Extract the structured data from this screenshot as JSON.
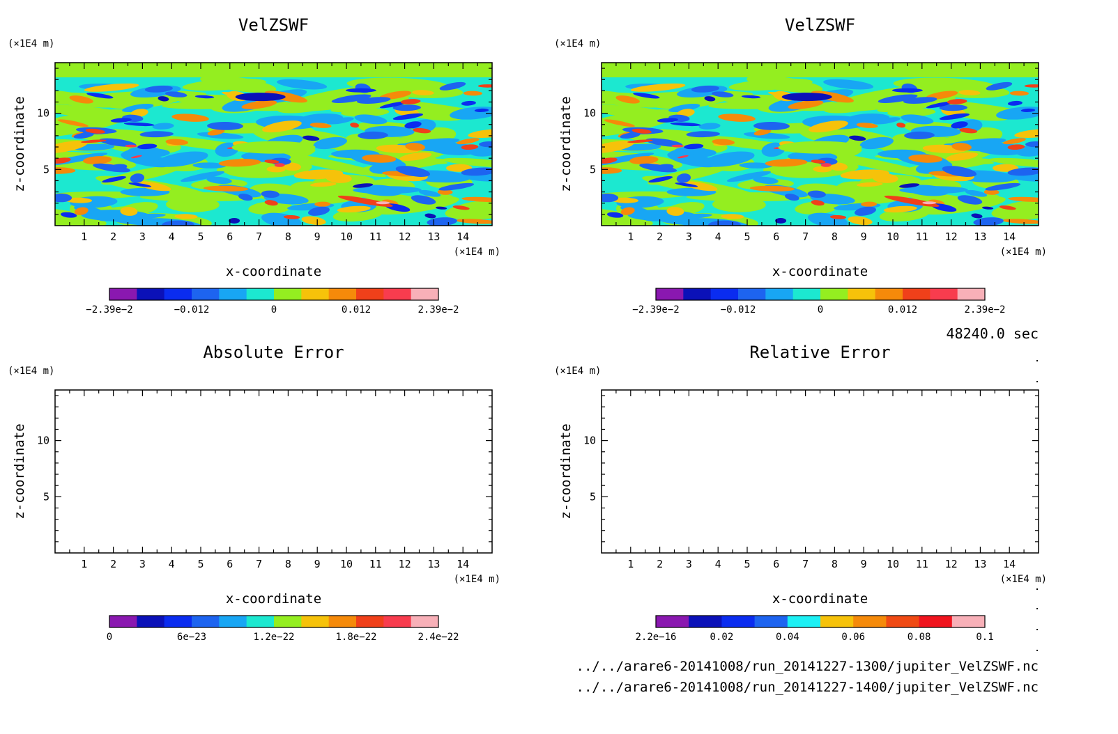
{
  "chart_data": [
    {
      "type": "heatmap",
      "title": "VelZSWF",
      "xlabel": "x-coordinate",
      "ylabel": "z-coordinate",
      "x_unit": "(×1E4 m)",
      "y_unit": "(×1E4 m)",
      "xlim": [
        0,
        15
      ],
      "ylim": [
        0,
        14.5
      ],
      "x_ticks": [
        "1",
        "2",
        "3",
        "4",
        "5",
        "6",
        "7",
        "8",
        "9",
        "10",
        "11",
        "12",
        "13",
        "14"
      ],
      "y_ticks": [
        "5",
        "10"
      ],
      "colorbar": {
        "range": [
          -0.0239,
          0.0239
        ],
        "labels": [
          "−2.39e−2",
          "−0.012",
          "0",
          "0.012",
          "2.39e−2"
        ],
        "colors": [
          "#8a18b0",
          "#0b11b8",
          "#0a2cf0",
          "#1d64f0",
          "#18a6f4",
          "#1ce8d0",
          "#94ee20",
          "#f6c20a",
          "#f58a0a",
          "#f0401a",
          "#f83c4e",
          "#f8b0b8"
        ]
      },
      "filled": true
    },
    {
      "type": "heatmap",
      "title": "VelZSWF",
      "xlabel": "x-coordinate",
      "ylabel": "z-coordinate",
      "x_unit": "(×1E4 m)",
      "y_unit": "(×1E4 m)",
      "xlim": [
        0,
        15
      ],
      "ylim": [
        0,
        14.5
      ],
      "x_ticks": [
        "1",
        "2",
        "3",
        "4",
        "5",
        "6",
        "7",
        "8",
        "9",
        "10",
        "11",
        "12",
        "13",
        "14"
      ],
      "y_ticks": [
        "5",
        "10"
      ],
      "colorbar": {
        "range": [
          -0.0239,
          0.0239
        ],
        "labels": [
          "−2.39e−2",
          "−0.012",
          "0",
          "0.012",
          "2.39e−2"
        ],
        "colors": [
          "#8a18b0",
          "#0b11b8",
          "#0a2cf0",
          "#1d64f0",
          "#18a6f4",
          "#1ce8d0",
          "#94ee20",
          "#f6c20a",
          "#f58a0a",
          "#f0401a",
          "#f83c4e",
          "#f8b0b8"
        ]
      },
      "filled": true
    },
    {
      "type": "heatmap",
      "title": "Absolute Error",
      "xlabel": "x-coordinate",
      "ylabel": "z-coordinate",
      "x_unit": "(×1E4 m)",
      "y_unit": "(×1E4 m)",
      "xlim": [
        0,
        15
      ],
      "ylim": [
        0,
        14.5
      ],
      "x_ticks": [
        "1",
        "2",
        "3",
        "4",
        "5",
        "6",
        "7",
        "8",
        "9",
        "10",
        "11",
        "12",
        "13",
        "14"
      ],
      "y_ticks": [
        "5",
        "10"
      ],
      "colorbar": {
        "range": [
          0,
          2.4e-22
        ],
        "labels": [
          "0",
          "6e−23",
          "1.2e−22",
          "1.8e−22",
          "2.4e−22"
        ],
        "colors": [
          "#8a18b0",
          "#0b11b8",
          "#0a2cf0",
          "#1d64f0",
          "#18a6f4",
          "#1ce8d0",
          "#94ee20",
          "#f6c20a",
          "#f58a0a",
          "#f0401a",
          "#f83c4e",
          "#f8b0b8"
        ]
      },
      "filled": false
    },
    {
      "type": "heatmap",
      "title": "Relative Error",
      "xlabel": "x-coordinate",
      "ylabel": "z-coordinate",
      "x_unit": "(×1E4 m)",
      "y_unit": "(×1E4 m)",
      "xlim": [
        0,
        15
      ],
      "ylim": [
        0,
        14.5
      ],
      "x_ticks": [
        "1",
        "2",
        "3",
        "4",
        "5",
        "6",
        "7",
        "8",
        "9",
        "10",
        "11",
        "12",
        "13",
        "14"
      ],
      "y_ticks": [
        "5",
        "10"
      ],
      "colorbar": {
        "range": [
          2.2e-16,
          0.1
        ],
        "labels": [
          "2.2e−16",
          "0.02",
          "0.04",
          "0.06",
          "0.08",
          "0.1"
        ],
        "colors": [
          "#8a18b0",
          "#0b11b8",
          "#0a2cf0",
          "#1d64f0",
          "#1cf0f4",
          "#f6c20a",
          "#f58a0a",
          "#f04a14",
          "#f0141e",
          "#f8b0b8"
        ]
      },
      "filled": false
    }
  ],
  "annotations": {
    "time": "48240.0 sec",
    "file1": "../../arare6-20141008/run_20141227-1300/jupiter_VelZSWF.nc",
    "file2": "../../arare6-20141008/run_20141227-1400/jupiter_VelZSWF.nc"
  }
}
